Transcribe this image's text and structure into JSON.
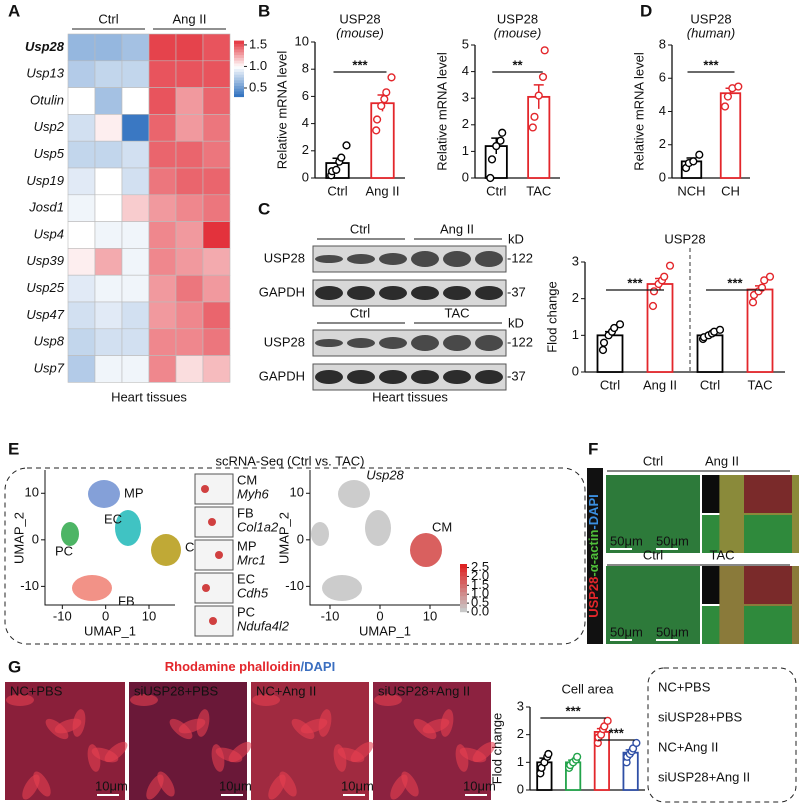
{
  "panel_labels": [
    "A",
    "B",
    "C",
    "D",
    "E",
    "F",
    "G"
  ],
  "heatmap": {
    "groups": [
      "Ctrl",
      "Ang II"
    ],
    "rows": [
      "Usp28",
      "Usp13",
      "Otulin",
      "Usp2",
      "Usp5",
      "Usp19",
      "Josd1",
      "Usp4",
      "Usp39",
      "Usp25",
      "Usp47",
      "Usp8",
      "Usp7"
    ],
    "values": [
      [
        0.65,
        0.65,
        0.7,
        1.55,
        1.55,
        1.5
      ],
      [
        0.75,
        0.8,
        0.8,
        1.5,
        1.5,
        1.5
      ],
      [
        1.0,
        0.7,
        1.0,
        1.5,
        1.3,
        1.45
      ],
      [
        0.85,
        1.05,
        0.35,
        1.45,
        1.3,
        1.4
      ],
      [
        0.8,
        0.8,
        0.85,
        1.45,
        1.45,
        1.4
      ],
      [
        0.9,
        1.0,
        0.85,
        1.4,
        1.45,
        1.45
      ],
      [
        0.95,
        1.0,
        1.15,
        1.3,
        1.35,
        1.4
      ],
      [
        1.0,
        0.95,
        0.95,
        1.35,
        1.3,
        1.6
      ],
      [
        1.05,
        1.25,
        0.95,
        1.35,
        1.3,
        1.25
      ],
      [
        0.9,
        0.95,
        0.95,
        1.3,
        1.4,
        1.3
      ],
      [
        0.85,
        0.9,
        0.85,
        1.3,
        1.35,
        1.45
      ],
      [
        0.8,
        0.85,
        0.85,
        1.35,
        1.35,
        1.4
      ],
      [
        0.75,
        0.95,
        0.95,
        1.35,
        1.1,
        1.2
      ]
    ],
    "colorbar": {
      "lim": [
        0.3,
        1.6
      ],
      "ticks": [
        1.5,
        {
          "value": 1.0,
          "label": "1.0"
        },
        0.5
      ]
    },
    "xlabel": "Heart tissues"
  },
  "chart_data": [
    {
      "type": "bar",
      "title": "USP28",
      "subtitle": "(mouse)",
      "ylabel": "Relative mRNA level",
      "categories": [
        "Ctrl",
        "Ang II"
      ],
      "colors": [
        "#000000",
        "#e3262b"
      ],
      "values": [
        1.1,
        5.5
      ],
      "errors": [
        0.35,
        0.6
      ],
      "points": [
        [
          0.2,
          0.5,
          0.6,
          1.2,
          1.5,
          2.4
        ],
        [
          3.5,
          4.3,
          5.3,
          5.8,
          6.3,
          7.4
        ]
      ],
      "ylim": [
        0,
        10
      ],
      "yticks": [
        0,
        2,
        4,
        6,
        8,
        10
      ],
      "significance": [
        "***"
      ]
    },
    {
      "type": "bar",
      "title": "USP28",
      "subtitle": "(mouse)",
      "ylabel": "Relative mRNA level",
      "categories": [
        "Ctrl",
        "TAC"
      ],
      "colors": [
        "#000000",
        "#e3262b"
      ],
      "values": [
        1.2,
        3.05
      ],
      "errors": [
        0.3,
        0.45
      ],
      "points": [
        [
          0.0,
          0.7,
          1.2,
          1.4,
          1.7
        ],
        [
          1.9,
          2.3,
          3.1,
          3.8,
          4.8
        ]
      ],
      "ylim": [
        0,
        5
      ],
      "yticks": [
        0,
        1,
        2,
        3,
        4,
        5
      ],
      "significance": [
        "**"
      ]
    },
    {
      "type": "bar",
      "title": "USP28",
      "subtitle": "(human)",
      "ylabel": "Relative mRNA level",
      "categories": [
        "NCH",
        "CH"
      ],
      "colors": [
        "#000000",
        "#e3262b"
      ],
      "values": [
        1.0,
        5.1
      ],
      "errors": [
        0.2,
        0.3
      ],
      "points": [
        [
          0.6,
          0.9,
          1.0,
          1.4
        ],
        [
          4.3,
          4.9,
          5.4,
          5.5
        ]
      ],
      "ylim": [
        0,
        8
      ],
      "yticks": [
        0,
        2,
        4,
        6,
        8
      ],
      "significance": [
        "***"
      ]
    },
    {
      "type": "bar",
      "title": "USP28",
      "ylabel": "Flod change",
      "categories": [
        "Ctrl",
        "Ang II",
        "Ctrl",
        "TAC"
      ],
      "colors": [
        "#000000",
        "#e3262b",
        "#000000",
        "#e3262b"
      ],
      "values": [
        1.0,
        2.4,
        1.0,
        2.25
      ],
      "errors": [
        0.1,
        0.15,
        0.05,
        0.1
      ],
      "points": [
        [
          0.6,
          0.8,
          1.0,
          1.1,
          1.2,
          1.3
        ],
        [
          1.8,
          2.2,
          2.4,
          2.5,
          2.6,
          2.9
        ],
        [
          0.9,
          0.95,
          1.0,
          1.05,
          1.1,
          1.15
        ],
        [
          1.9,
          2.1,
          2.2,
          2.3,
          2.5,
          2.6
        ]
      ],
      "ylim": [
        0,
        3
      ],
      "yticks": [
        0,
        1,
        2,
        3
      ],
      "significance": [
        "***",
        "***"
      ]
    },
    {
      "type": "bar",
      "title": "Cell area",
      "ylabel": "Flod change",
      "categories": [
        "NC+PBS",
        "siUSP28+PBS",
        "NC+Ang II",
        "siUSP28+Ang II"
      ],
      "colors": [
        "#000000",
        "#22a34a",
        "#e3262b",
        "#2f4fa6"
      ],
      "legend": true,
      "values": [
        1.0,
        1.0,
        2.1,
        1.35
      ],
      "errors": [
        0.15,
        0.08,
        0.12,
        0.1
      ],
      "points": [
        [
          0.6,
          0.8,
          1.0,
          1.2,
          1.3
        ],
        [
          0.8,
          0.9,
          1.0,
          1.1,
          1.2
        ],
        [
          1.7,
          1.9,
          2.0,
          2.2,
          2.3,
          2.5
        ],
        [
          1.0,
          1.2,
          1.3,
          1.4,
          1.5,
          1.7
        ]
      ],
      "ylim": [
        0,
        3
      ],
      "yticks": [
        0,
        1,
        2,
        3
      ],
      "significance": [
        "***",
        "***"
      ]
    }
  ],
  "blots": {
    "groups": [
      [
        "Ctrl",
        "Ang II"
      ],
      [
        "Ctrl",
        "TAC"
      ]
    ],
    "unit": "kD",
    "proteins": [
      "USP28",
      "GAPDH"
    ],
    "sizes": [
      "-122",
      "-37"
    ],
    "xlabel": "Heart tissues"
  },
  "scrna": {
    "title": "scRNA-Seq (Ctrl vs. TAC)",
    "xlabel": "UMAP_1",
    "ylabel": "UMAP_2",
    "xlim": [
      -14,
      16
    ],
    "ylim": [
      -14,
      15
    ],
    "xticks": [
      -10,
      0,
      10
    ],
    "yticks": [
      10,
      0,
      -10
    ],
    "clusters": [
      "MP",
      "EC",
      "PC",
      "CM",
      "FB"
    ],
    "markers": [
      {
        "cluster": "CM",
        "gene": "Myh6"
      },
      {
        "cluster": "FB",
        "gene": "Col1a2"
      },
      {
        "cluster": "MP",
        "gene": "Mrc1"
      },
      {
        "cluster": "EC",
        "gene": "Cdh5"
      },
      {
        "cluster": "PC",
        "gene": "Ndufa4l2"
      }
    ],
    "gene": "Usp28",
    "gene_cluster": "CM",
    "colorbar": {
      "lim": [
        0,
        2.7
      ],
      "ticks": [
        2.5,
        {
          "value": 2.0,
          "label": "2.0"
        },
        1.5,
        {
          "value": 1.0,
          "label": "1.0"
        },
        0.5,
        {
          "value": 0.0,
          "label": "0.0"
        }
      ]
    }
  },
  "staining": {
    "label_parts": [
      "USP28",
      "-α-actin",
      "-DAPI"
    ],
    "groups": [
      "Ctrl",
      "Ang II",
      "Ctrl",
      "TAC"
    ],
    "scale": "50μm"
  },
  "cells": {
    "title_parts": [
      "Rhodamine phalloidin",
      "/DAPI"
    ],
    "groups": [
      "NC+PBS",
      "siUSP28+PBS",
      "NC+Ang II",
      "siUSP28+Ang II"
    ],
    "scale": "10μm"
  }
}
